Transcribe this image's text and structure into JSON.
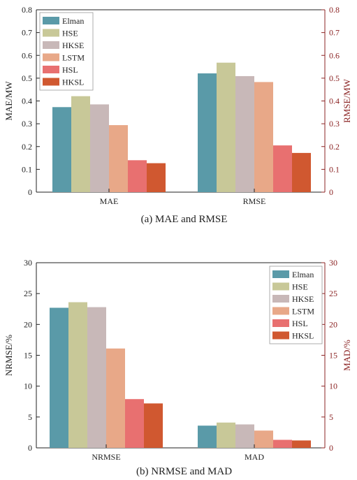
{
  "chart_data": [
    {
      "type": "bar",
      "caption": "(a) MAE and RMSE",
      "categories": [
        "MAE",
        "RMSE"
      ],
      "series": [
        {
          "name": "Elman",
          "values": [
            0.373,
            0.521
          ]
        },
        {
          "name": "HSE",
          "values": [
            0.421,
            0.568
          ]
        },
        {
          "name": "HKSE",
          "values": [
            0.385,
            0.509
          ]
        },
        {
          "name": "LSTM",
          "values": [
            0.294,
            0.483
          ]
        },
        {
          "name": "HSL",
          "values": [
            0.14,
            0.205
          ]
        },
        {
          "name": "HKSL",
          "values": [
            0.127,
            0.172
          ]
        }
      ],
      "ylabel": "MAE/MW",
      "ylabel_right": "RMSE/MW",
      "ylim": [
        0,
        0.8
      ],
      "yticks": [
        "0",
        "0.1",
        "0.2",
        "0.3",
        "0.4",
        "0.5",
        "0.6",
        "0.7",
        "0.8"
      ],
      "yticks_right": [
        "0",
        "0.1",
        "0.2",
        "0.3",
        "0.4",
        "0.5",
        "0.6",
        "0.7",
        "0.8"
      ],
      "legend_position": "top-left",
      "grid": false
    },
    {
      "type": "bar",
      "caption": "(b) NRMSE and MAD",
      "categories": [
        "NRMSE",
        "MAD"
      ],
      "series": [
        {
          "name": "Elman",
          "values": [
            22.7,
            3.6
          ]
        },
        {
          "name": "HSE",
          "values": [
            23.6,
            4.1
          ]
        },
        {
          "name": "HKSE",
          "values": [
            22.8,
            3.8
          ]
        },
        {
          "name": "LSTM",
          "values": [
            16.1,
            2.8
          ]
        },
        {
          "name": "HSL",
          "values": [
            7.9,
            1.3
          ]
        },
        {
          "name": "HKSL",
          "values": [
            7.2,
            1.2
          ]
        }
      ],
      "ylabel": "NRMSE/%",
      "ylabel_right": "MAD/%",
      "ylim": [
        0,
        30
      ],
      "yticks": [
        "0",
        "5",
        "10",
        "15",
        "20",
        "25",
        "30"
      ],
      "yticks_right": [
        "0",
        "5",
        "10",
        "15",
        "20",
        "25",
        "30"
      ],
      "legend_position": "top-right",
      "grid": false
    }
  ],
  "colors": {
    "Elman": "#5a9aa8",
    "HSE": "#c8c898",
    "HKSE": "#c8b8b8",
    "LSTM": "#e8a888",
    "HSL": "#e87070",
    "HKSL": "#d05830",
    "axis": "#222222",
    "right_axis": "#8b2323"
  }
}
